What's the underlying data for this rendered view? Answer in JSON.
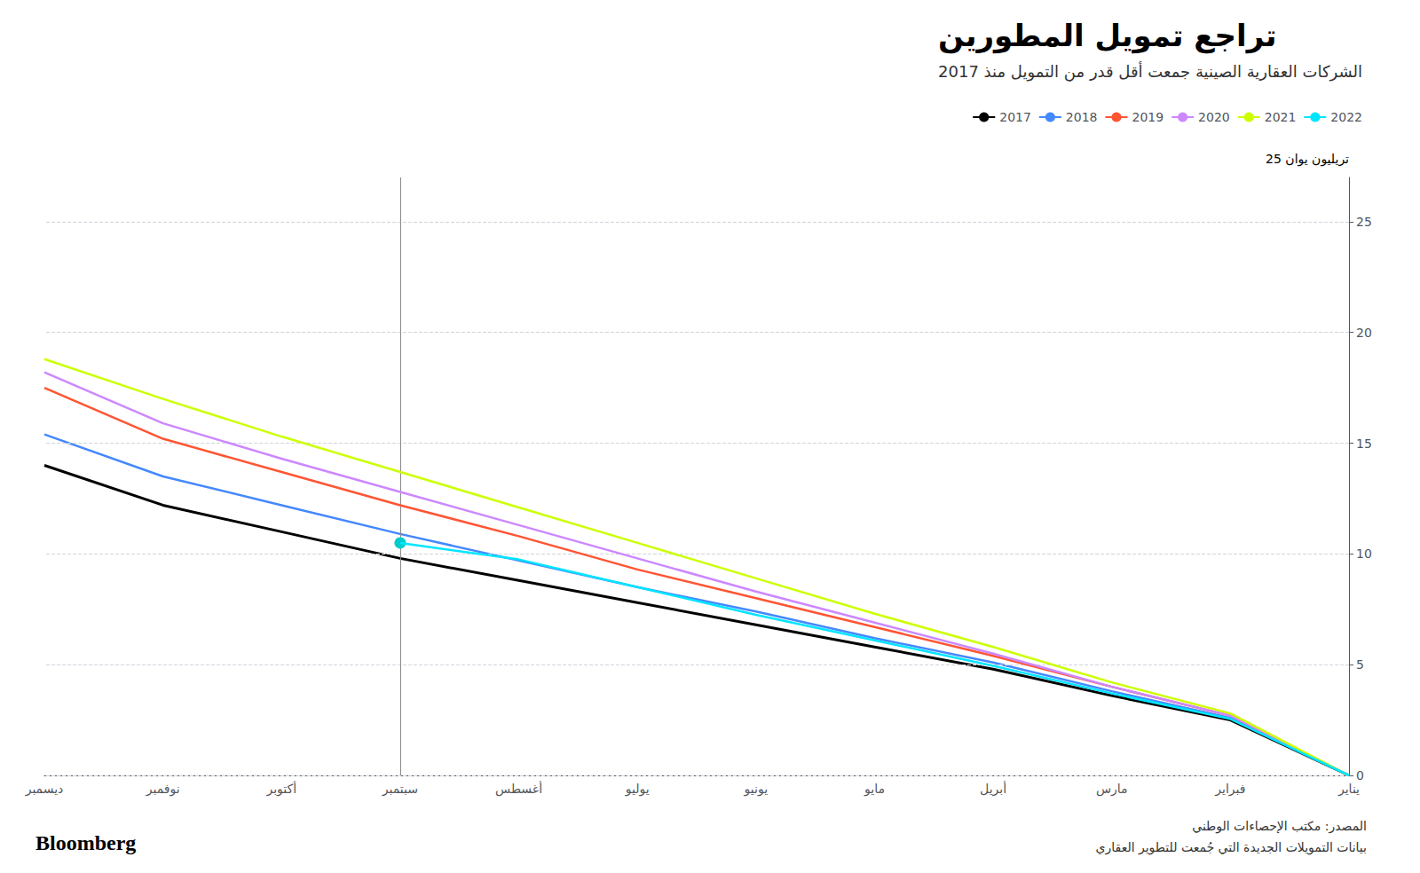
{
  "chart_data": {
    "type": "line",
    "title": "تراجع تمويل المطورين",
    "subtitle": "الشركات العقارية الصينية جمعت أقل قدر من التمويل منذ 2017",
    "ylabel": "25 تريليون يوان",
    "source": [
      "المصدر: مكتب الإحصاءات الوطني",
      "بيانات التمويلات الجديدة التي جُمعت للتطوير العقاري"
    ],
    "credit": "Bloomberg",
    "categories": [
      "يناير",
      "فبراير",
      "مارس",
      "أبريل",
      "مايو",
      "يونيو",
      "يوليو",
      "أغسطس",
      "سبتمبر",
      "أكتوبر",
      "نوفمبر",
      "ديسمبر"
    ],
    "series": [
      {
        "name": "2017",
        "color": "#000000",
        "values": [
          0,
          2.5,
          3.6,
          4.8,
          5.8,
          6.8,
          7.8,
          8.8,
          9.8,
          11.0,
          12.2,
          14.0
        ]
      },
      {
        "name": "2018",
        "color": "#4488ff",
        "values": [
          0,
          2.6,
          3.8,
          5.1,
          6.2,
          7.4,
          8.5,
          9.7,
          10.9,
          12.2,
          13.5,
          15.4
        ]
      },
      {
        "name": "2019",
        "color": "#ff5533",
        "values": [
          0,
          2.7,
          4.0,
          5.4,
          6.7,
          8.0,
          9.3,
          10.8,
          12.2,
          13.7,
          15.2,
          17.5
        ]
      },
      {
        "name": "2020",
        "color": "#cc88ff",
        "values": [
          0,
          2.7,
          4.0,
          5.5,
          6.9,
          8.3,
          9.8,
          11.3,
          12.8,
          14.3,
          15.9,
          18.2
        ]
      },
      {
        "name": "2021",
        "color": "#ccff00",
        "values": [
          0,
          2.8,
          4.2,
          5.8,
          7.3,
          8.9,
          10.5,
          12.1,
          13.7,
          15.3,
          17.0,
          18.8
        ]
      },
      {
        "name": "2022",
        "color": "#00e5ff",
        "values": [
          0,
          2.55,
          3.7,
          4.95,
          6.1,
          7.25,
          8.5,
          9.75,
          10.5,
          null,
          null,
          null
        ],
        "dot": {
          "category": "سبتمبر",
          "value": 10.5,
          "color": "#00cccc"
        }
      }
    ],
    "vline": {
      "category": "سبتمبر",
      "color": "#888888"
    },
    "ylim": [
      0,
      27
    ],
    "yticks": [
      0,
      5,
      10,
      15,
      20,
      25
    ],
    "grid": true,
    "legend": "top-right"
  }
}
